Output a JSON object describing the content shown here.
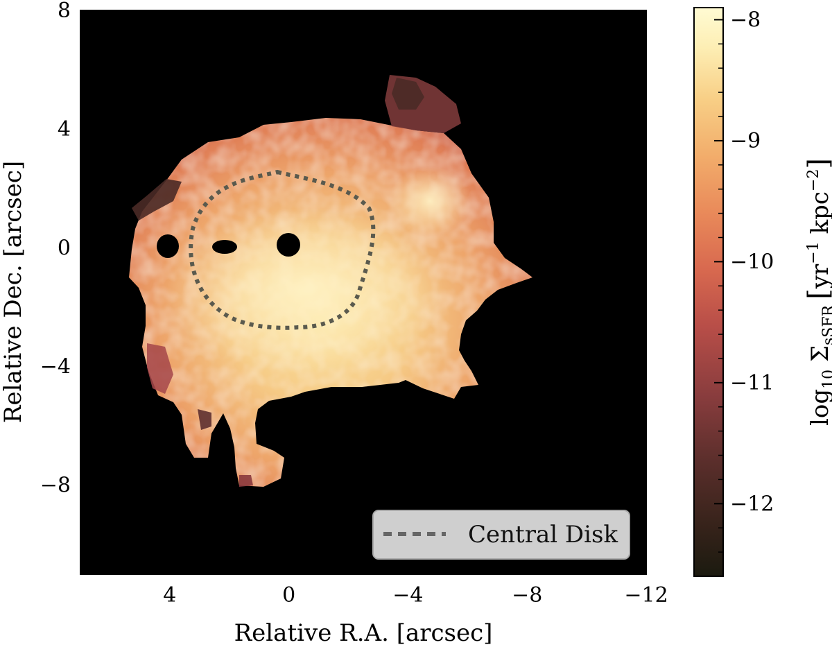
{
  "chart_data": {
    "type": "heatmap",
    "xlabel": "Relative R.A. [arcsec]",
    "ylabel": "Relative Dec. [arcsec]",
    "xlim": [
      7,
      -12
    ],
    "ylim": [
      -11,
      8
    ],
    "x_ticks": [
      4,
      0,
      -4,
      -8,
      -12
    ],
    "y_ticks": [
      8,
      4,
      0,
      -4,
      -8
    ],
    "colorbar": {
      "label_main": "log",
      "label_sub": "10",
      "label_sigma": " Σ",
      "label_sigma_sub": "sSFR",
      "label_unit_open": "[",
      "label_unit_yr": "yr",
      "label_unit_yr_exp": "−1",
      "label_unit_kpc": " kpc",
      "label_unit_kpc_exp": "−2",
      "label_unit_close": "]",
      "range": [
        -12.6,
        -7.9
      ],
      "ticks": [
        -8,
        -9,
        -10,
        -11,
        -12
      ],
      "colormap": [
        "#1b1a0f",
        "#3a241c",
        "#5a2e2b",
        "#8a3d3e",
        "#b84e48",
        "#d8694f",
        "#e98a5a",
        "#f2ad6b",
        "#f8cf86",
        "#fdeeb4",
        "#fffbd3"
      ]
    },
    "map_features": {
      "background_color": "#000000",
      "masked_holes": [
        [
          4.3,
          0.2
        ],
        [
          2.3,
          0.2
        ],
        [
          0.1,
          0.3
        ]
      ],
      "central_disk": {
        "center": [
          0.1,
          0.0
        ],
        "radius_x": 2.9,
        "radius_y": 2.7
      }
    },
    "legend": {
      "position": "lower-right",
      "entries": [
        {
          "label": "Central Disk",
          "style": "dashed",
          "color": "#666666"
        }
      ]
    }
  }
}
